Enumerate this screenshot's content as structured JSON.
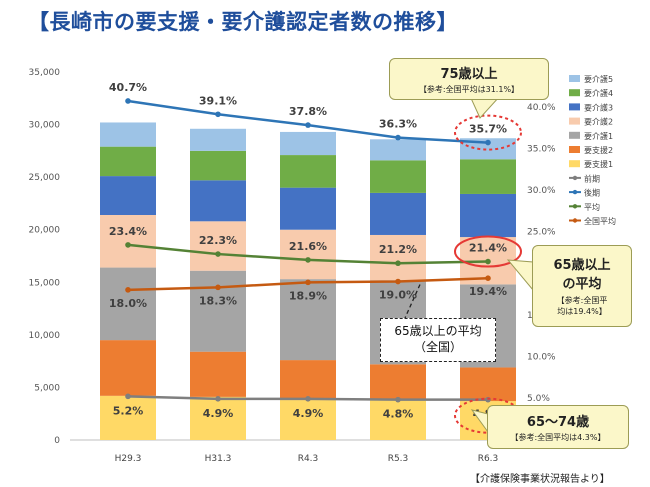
{
  "title": "【長崎市の要支援・要介護認定者数の推移】",
  "source": "【介護保険事業状況報告より】",
  "chart_data": {
    "type": "bar",
    "stacked": true,
    "categories": [
      "H29.3",
      "H31.3",
      "R4.3",
      "R5.3",
      "R6.3"
    ],
    "ylim_left": [
      0,
      35000
    ],
    "yticks_left": [
      0,
      5000,
      10000,
      15000,
      20000,
      25000,
      30000,
      35000
    ],
    "ytick_labels_left": [
      "0",
      "5,000",
      "10,000",
      "15,000",
      "20,000",
      "25,000",
      "30,000",
      "35,000"
    ],
    "ylim_right": [
      5,
      42.5
    ],
    "yticks_right": [
      5,
      10,
      15,
      20,
      25,
      30,
      35,
      40
    ],
    "ytick_labels_right": [
      "5.0%",
      "10.0%",
      "15.0%",
      "20.0%",
      "25.0%",
      "30.0%",
      "35.0%",
      "40.0%"
    ],
    "series": [
      {
        "name": "要支援1",
        "color": "#ffd966",
        "values": [
          4200,
          4100,
          3800,
          3900,
          3700
        ]
      },
      {
        "name": "要支援2",
        "color": "#ed7d31",
        "values": [
          5300,
          4300,
          3800,
          3300,
          3200
        ]
      },
      {
        "name": "要介護1",
        "color": "#a5a5a5",
        "values": [
          6900,
          7700,
          7700,
          8000,
          7900
        ]
      },
      {
        "name": "要介護2",
        "color": "#f8cbad",
        "values": [
          5000,
          4700,
          4700,
          4300,
          4500
        ]
      },
      {
        "name": "要介護3",
        "color": "#4472c4",
        "values": [
          3700,
          3900,
          4000,
          4000,
          4100
        ]
      },
      {
        "name": "要介護4",
        "color": "#70ad47",
        "values": [
          2800,
          2800,
          3100,
          3100,
          3300
        ]
      },
      {
        "name": "要介護5",
        "color": "#9dc3e6",
        "values": [
          2300,
          2100,
          2200,
          2000,
          2000
        ]
      }
    ],
    "lines": [
      {
        "name": "前期",
        "color": "#7f7f7f",
        "values": [
          5.2,
          4.9,
          4.9,
          4.8,
          4.8
        ],
        "labels": [
          "5.2%",
          "4.9%",
          "4.9%",
          "4.8%",
          "4.8%"
        ]
      },
      {
        "name": "後期",
        "color": "#2e75b6",
        "values": [
          40.7,
          39.1,
          37.8,
          36.3,
          35.7
        ],
        "labels": [
          "40.7%",
          "39.1%",
          "37.8%",
          "36.3%",
          "35.7%"
        ]
      },
      {
        "name": "平均",
        "color": "#548235",
        "values": [
          23.4,
          22.3,
          21.6,
          21.2,
          21.4
        ],
        "labels": [
          "23.4%",
          "22.3%",
          "21.6%",
          "21.2%",
          "21.4%"
        ]
      },
      {
        "name": "全国平均",
        "color": "#c55a11",
        "values": [
          18.0,
          18.3,
          18.9,
          19.0,
          19.4
        ],
        "labels": [
          "18.0%",
          "18.3%",
          "18.9%",
          "19.0%",
          "19.4%"
        ]
      }
    ],
    "legend_order": [
      "要介護5",
      "要介護4",
      "要介護3",
      "要介護2",
      "要介護1",
      "要支援2",
      "要支援1",
      "前期",
      "後期",
      "平均",
      "全国平均"
    ],
    "legend_position": "right"
  },
  "callouts": {
    "late": {
      "title": "75歳以上",
      "note": "【参考:全国平均は31.1%】"
    },
    "avg": {
      "title1": "65歳以上",
      "title2": "の平均",
      "note1": "【参考:全国平",
      "note2": "均は19.4%】"
    },
    "early": {
      "title": "65～74歳",
      "note": "【参考:全国平均は4.3%】"
    }
  },
  "annotation": {
    "line1": "65歳以上の平均",
    "line2": "（全国）"
  }
}
